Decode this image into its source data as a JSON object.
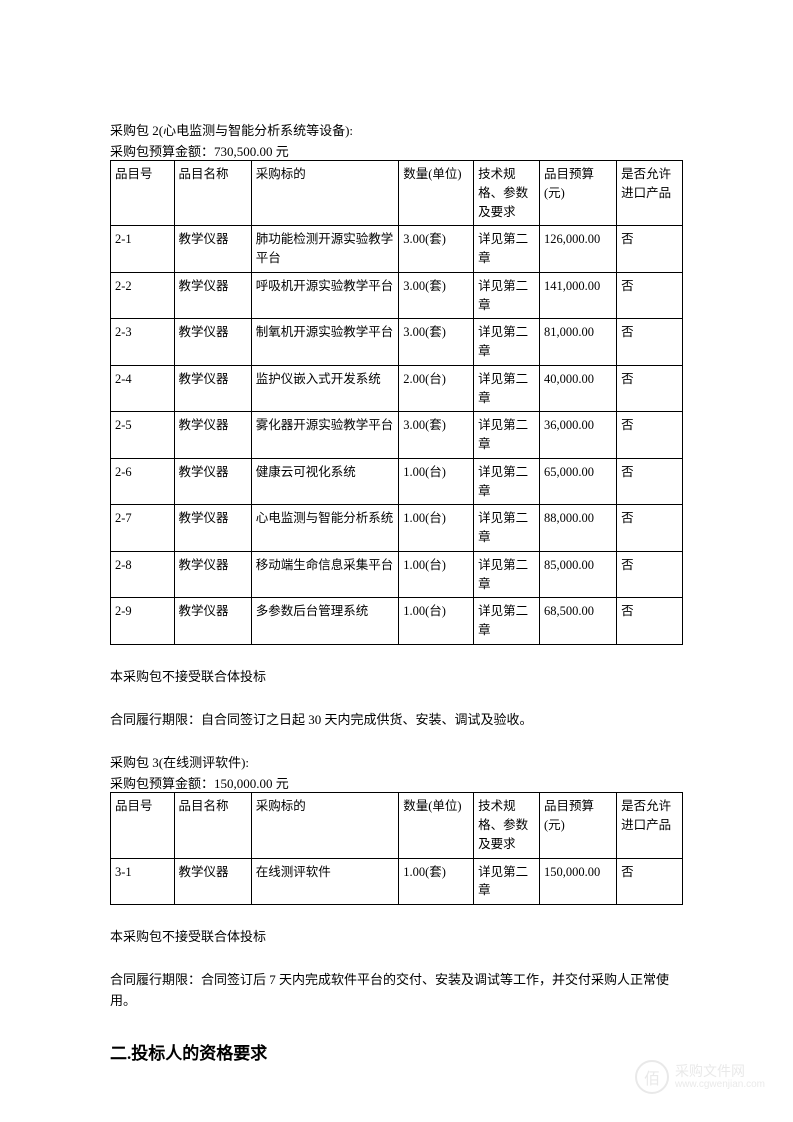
{
  "package2": {
    "title": "采购包 2(心电监测与智能分析系统等设备):",
    "budget_label": "采购包预算金额：",
    "budget_value": "730,500.00 元",
    "headers": {
      "id": "品目号",
      "name": "品目名称",
      "target": "采购标的",
      "qty": "数量(单位)",
      "tech": "技术规格、参数及要求",
      "budget": "品目预算(元)",
      "import": "是否允许进口产品"
    },
    "rows": [
      {
        "id": "2-1",
        "name": "教学仪器",
        "target": "肺功能检测开源实验教学平台",
        "qty": "3.00(套)",
        "tech": "详见第二章",
        "budget": "126,000.00",
        "import": "否"
      },
      {
        "id": "2-2",
        "name": "教学仪器",
        "target": "呼吸机开源实验教学平台",
        "qty": "3.00(套)",
        "tech": "详见第二章",
        "budget": "141,000.00",
        "import": "否"
      },
      {
        "id": "2-3",
        "name": "教学仪器",
        "target": "制氧机开源实验教学平台",
        "qty": "3.00(套)",
        "tech": "详见第二章",
        "budget": "81,000.00",
        "import": "否"
      },
      {
        "id": "2-4",
        "name": "教学仪器",
        "target": "监护仪嵌入式开发系统",
        "qty": "2.00(台)",
        "tech": "详见第二章",
        "budget": "40,000.00",
        "import": "否"
      },
      {
        "id": "2-5",
        "name": "教学仪器",
        "target": "雾化器开源实验教学平台",
        "qty": "3.00(套)",
        "tech": "详见第二章",
        "budget": "36,000.00",
        "import": "否"
      },
      {
        "id": "2-6",
        "name": "教学仪器",
        "target": "健康云可视化系统",
        "qty": "1.00(台)",
        "tech": "详见第二章",
        "budget": "65,000.00",
        "import": "否"
      },
      {
        "id": "2-7",
        "name": "教学仪器",
        "target": "心电监测与智能分析系统",
        "qty": "1.00(台)",
        "tech": "详见第二章",
        "budget": "88,000.00",
        "import": "否"
      },
      {
        "id": "2-8",
        "name": "教学仪器",
        "target": "移动端生命信息采集平台",
        "qty": "1.00(台)",
        "tech": "详见第二章",
        "budget": "85,000.00",
        "import": "否"
      },
      {
        "id": "2-9",
        "name": "教学仪器",
        "target": "多参数后台管理系统",
        "qty": "1.00(台)",
        "tech": "详见第二章",
        "budget": "68,500.00",
        "import": "否"
      }
    ],
    "note1": "本采购包不接受联合体投标",
    "note2": "合同履行期限：自合同签订之日起 30 天内完成供货、安装、调试及验收。"
  },
  "package3": {
    "title": "采购包 3(在线测评软件):",
    "budget_label": "采购包预算金额：",
    "budget_value": "150,000.00 元",
    "headers": {
      "id": "品目号",
      "name": "品目名称",
      "target": "采购标的",
      "qty": "数量(单位)",
      "tech": "技术规格、参数及要求",
      "budget": "品目预算(元)",
      "import": "是否允许进口产品"
    },
    "rows": [
      {
        "id": "3-1",
        "name": "教学仪器",
        "target": "在线测评软件",
        "qty": "1.00(套)",
        "tech": "详见第二章",
        "budget": "150,000.00",
        "import": "否"
      }
    ],
    "note1": "本采购包不接受联合体投标",
    "note2": "合同履行期限：合同签订后 7 天内完成软件平台的交付、安装及调试等工作，并交付采购人正常使用。"
  },
  "section2_heading": "二.投标人的资格要求",
  "watermark": {
    "icon": "佰",
    "top": "采购文件网",
    "bottom": "www.cgwenjian.com"
  },
  "styles": {
    "page_bg": "#ffffff",
    "text_color": "#000000",
    "border_color": "#000000",
    "body_fontsize": 13,
    "table_fontsize": 12.5,
    "heading_fontsize": 17
  }
}
